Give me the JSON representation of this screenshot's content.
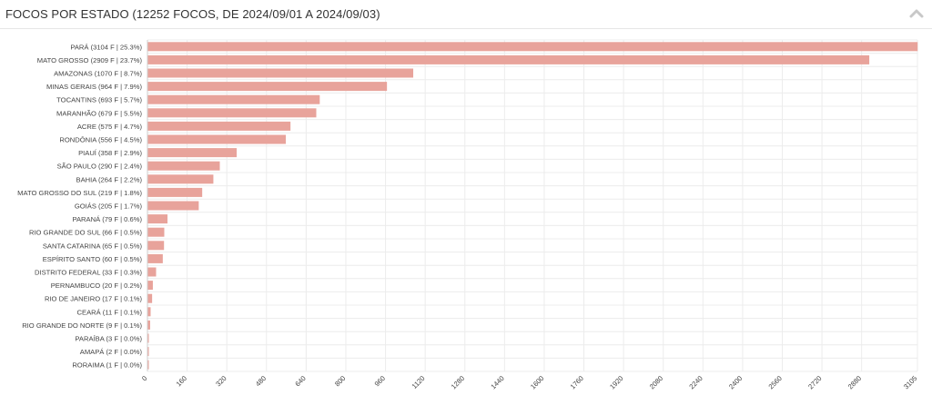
{
  "header": {
    "title": "FOCOS POR ESTADO (12252 FOCOS, DE 2024/09/01 A 2024/09/03)",
    "collapse_icon": "chevron-up-icon"
  },
  "colors": {
    "bar": "#e8a39b",
    "grid": "#ececec",
    "axis_text": "#444444"
  },
  "chart_data": {
    "type": "bar",
    "orientation": "horizontal",
    "title": "FOCOS POR ESTADO (12252 FOCOS, DE 2024/09/01 A 2024/09/03)",
    "categories": [
      "PARÁ (3104 F | 25.3%)",
      "MATO GROSSO (2909 F | 23.7%)",
      "AMAZONAS (1070 F | 8.7%)",
      "MINAS GERAIS (964 F | 7.9%)",
      "TOCANTINS (693 F | 5.7%)",
      "MARANHÃO (679 F | 5.5%)",
      "ACRE (575 F | 4.7%)",
      "RONDÔNIA (556 F | 4.5%)",
      "PIAUÍ (358 F | 2.9%)",
      "SÃO PAULO (290 F | 2.4%)",
      "BAHIA (264 F | 2.2%)",
      "MATO GROSSO DO SUL (219 F | 1.8%)",
      "GOIÁS (205 F | 1.7%)",
      "PARANÁ (79 F | 0.6%)",
      "RIO GRANDE DO SUL (66 F | 0.5%)",
      "SANTA CATARINA (65 F | 0.5%)",
      "ESPÍRITO SANTO (60 F | 0.5%)",
      "DISTRITO FEDERAL (33 F | 0.3%)",
      "PERNAMBUCO (20 F | 0.2%)",
      "RIO DE JANEIRO (17 F | 0.1%)",
      "CEARÁ (11 F | 0.1%)",
      "RIO GRANDE DO NORTE (9 F | 0.1%)",
      "PARAÍBA (3 F | 0.0%)",
      "AMAPÁ (2 F | 0.0%)",
      "RORAIMA (1 F | 0.0%)"
    ],
    "values": [
      3104,
      2909,
      1070,
      964,
      693,
      679,
      575,
      556,
      358,
      290,
      264,
      219,
      205,
      79,
      66,
      65,
      60,
      33,
      20,
      17,
      11,
      9,
      3,
      2,
      1
    ],
    "xlim": [
      0,
      3105
    ],
    "xticks": [
      0,
      160,
      320,
      480,
      640,
      800,
      960,
      1120,
      1280,
      1440,
      1600,
      1760,
      1920,
      2080,
      2240,
      2400,
      2560,
      2720,
      2880,
      3105
    ],
    "xtick_labels": [
      "0",
      "160",
      "320",
      "480",
      "640",
      "800",
      "960",
      "1120",
      "1280",
      "1440",
      "1600",
      "1760",
      "1920",
      "2080",
      "2240",
      "2400",
      "2560",
      "2720",
      "2880",
      "3105"
    ],
    "grid": true,
    "legend": "none"
  }
}
